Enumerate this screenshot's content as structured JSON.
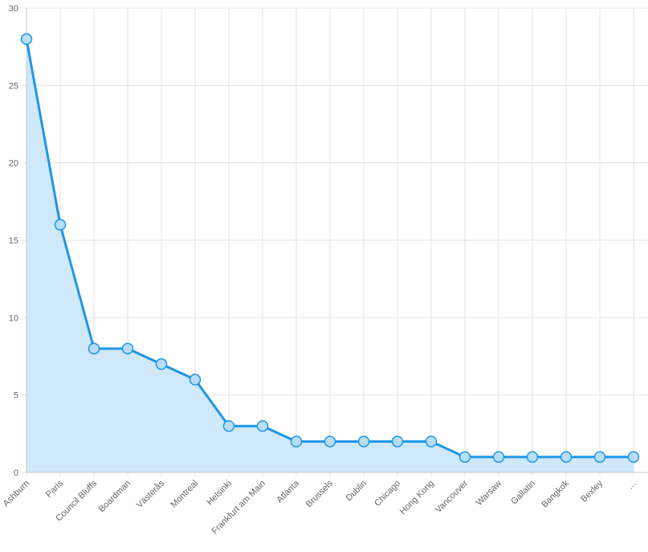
{
  "chart_data": {
    "type": "area",
    "categories": [
      "Ashburn",
      "Paris",
      "Council Bluffs",
      "Boardman",
      "Västerås",
      "Montreal",
      "Helsinki",
      "Frankfurt am Main",
      "Atlanta",
      "Brussels",
      "Dublin",
      "Chicago",
      "Hong Kong",
      "Vancouver",
      "Warsaw",
      "Gallatin",
      "Bangkok",
      "Bexley",
      "…"
    ],
    "values": [
      28,
      16,
      8,
      8,
      7,
      6,
      3,
      3,
      2,
      2,
      2,
      2,
      2,
      1,
      1,
      1,
      1,
      1,
      1
    ],
    "yticks": [
      "0",
      "5",
      "10",
      "15",
      "20",
      "25",
      "30"
    ],
    "ylim": [
      0,
      30
    ],
    "grid": true,
    "legend": "none",
    "colors": {
      "line": "#1e96e8",
      "fill": "#cfe8fa",
      "point_fill": "#b8def7",
      "grid": "#e3e3e3"
    }
  }
}
